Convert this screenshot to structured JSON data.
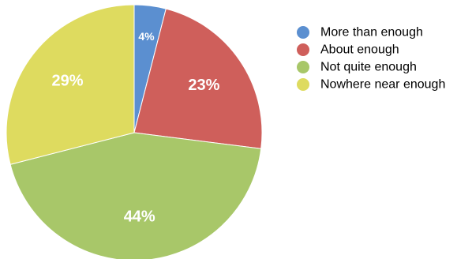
{
  "chart_data": {
    "type": "pie",
    "title": "",
    "legend_position": "right",
    "slices": [
      {
        "label": "More than enough",
        "value": 4,
        "display": "4%",
        "color": "#5b8fd0"
      },
      {
        "label": "About enough",
        "value": 23,
        "display": "23%",
        "color": "#cf5f5b"
      },
      {
        "label": "Not quite enough",
        "value": 44,
        "display": "44%",
        "color": "#a8c769"
      },
      {
        "label": "Nowhere near enough",
        "value": 29,
        "display": "29%",
        "color": "#dedb5f"
      }
    ]
  }
}
